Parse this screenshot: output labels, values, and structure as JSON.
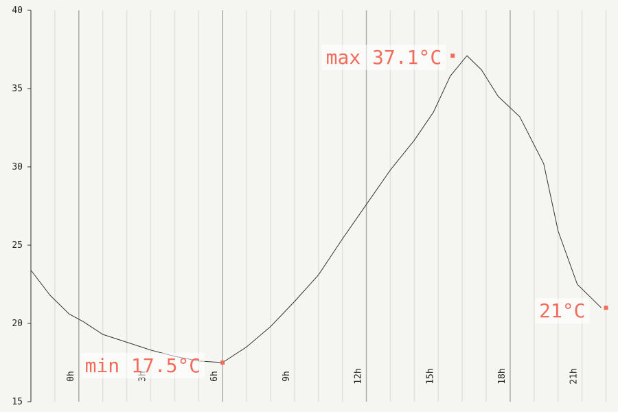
{
  "chart_data": {
    "type": "line",
    "title": "",
    "xlabel": "",
    "ylabel": "",
    "ylim": [
      15,
      40
    ],
    "xlim": [
      -2,
      22.5
    ],
    "yticks": [
      15,
      20,
      25,
      30,
      35,
      40
    ],
    "ytick_labels": [
      "15",
      "20",
      "25",
      "30",
      "35",
      "40"
    ],
    "xticks": [
      0,
      3,
      6,
      9,
      12,
      15,
      18,
      21
    ],
    "xtick_labels": [
      "0h",
      "3h",
      "6h",
      "9h",
      "12h",
      "15h",
      "18h",
      "21h"
    ],
    "grid": "vertical",
    "colors": {
      "background": "#f5f6f2",
      "line": "#333333",
      "accent": "#f26b5b",
      "major_grid": "#a9aba7",
      "minor_grid": "#dfe1dc",
      "axis": "#333333"
    },
    "series": [
      {
        "x": [
          -2,
          -1.2,
          -0.4,
          0.2,
          1,
          2,
          3,
          4,
          5,
          6,
          7,
          8,
          9,
          10,
          11,
          12,
          13,
          14,
          14.8,
          15.5,
          16.2,
          16.8,
          17.5,
          18.4,
          19.4,
          20.0,
          20.8,
          21.8
        ],
        "y": [
          23.4,
          21.8,
          20.6,
          20.1,
          19.3,
          18.8,
          18.3,
          17.9,
          17.6,
          17.5,
          18.5,
          19.8,
          21.4,
          23.1,
          25.4,
          27.6,
          29.8,
          31.7,
          33.5,
          35.8,
          37.1,
          36.2,
          34.5,
          33.2,
          30.2,
          25.9,
          22.5,
          21.0
        ]
      }
    ],
    "annotations": [
      {
        "name": "max",
        "text": "max 37.1°C",
        "x": 15.6,
        "y": 37.1
      },
      {
        "name": "min",
        "text": "min 17.5°C",
        "x": 6.0,
        "y": 17.5
      },
      {
        "name": "last",
        "text": "21°C",
        "x": 22.0,
        "y": 21.0
      }
    ]
  }
}
